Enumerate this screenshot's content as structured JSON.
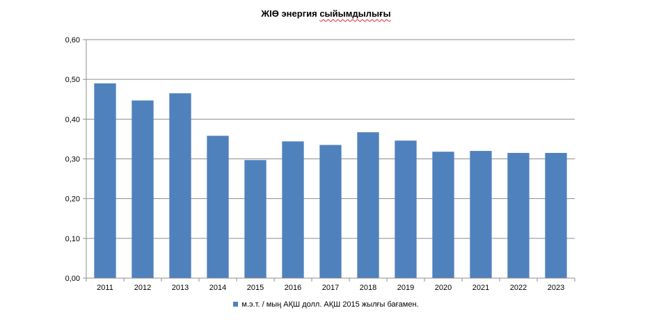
{
  "chart_data": {
    "type": "bar",
    "title_plain": "ЖІӨ энергия",
    "title_marked": "сыйымдылығы",
    "categories": [
      "2011",
      "2012",
      "2013",
      "2014",
      "2015",
      "2016",
      "2017",
      "2018",
      "2019",
      "2020",
      "2021",
      "2022",
      "2023"
    ],
    "series": [
      {
        "name": "м.э.т. / мың АҚШ долл. АҚШ 2015 жылғы бағамен.",
        "color": "#4f81bd",
        "values": [
          0.49,
          0.447,
          0.465,
          0.358,
          0.297,
          0.344,
          0.335,
          0.367,
          0.346,
          0.318,
          0.32,
          0.315,
          0.315
        ]
      }
    ],
    "ylim": [
      0,
      0.6
    ],
    "yticks": [
      "0,00",
      "0,10",
      "0,20",
      "0,30",
      "0,40",
      "0,50",
      "0,60"
    ],
    "grid": true,
    "legend_position": "bottom"
  }
}
